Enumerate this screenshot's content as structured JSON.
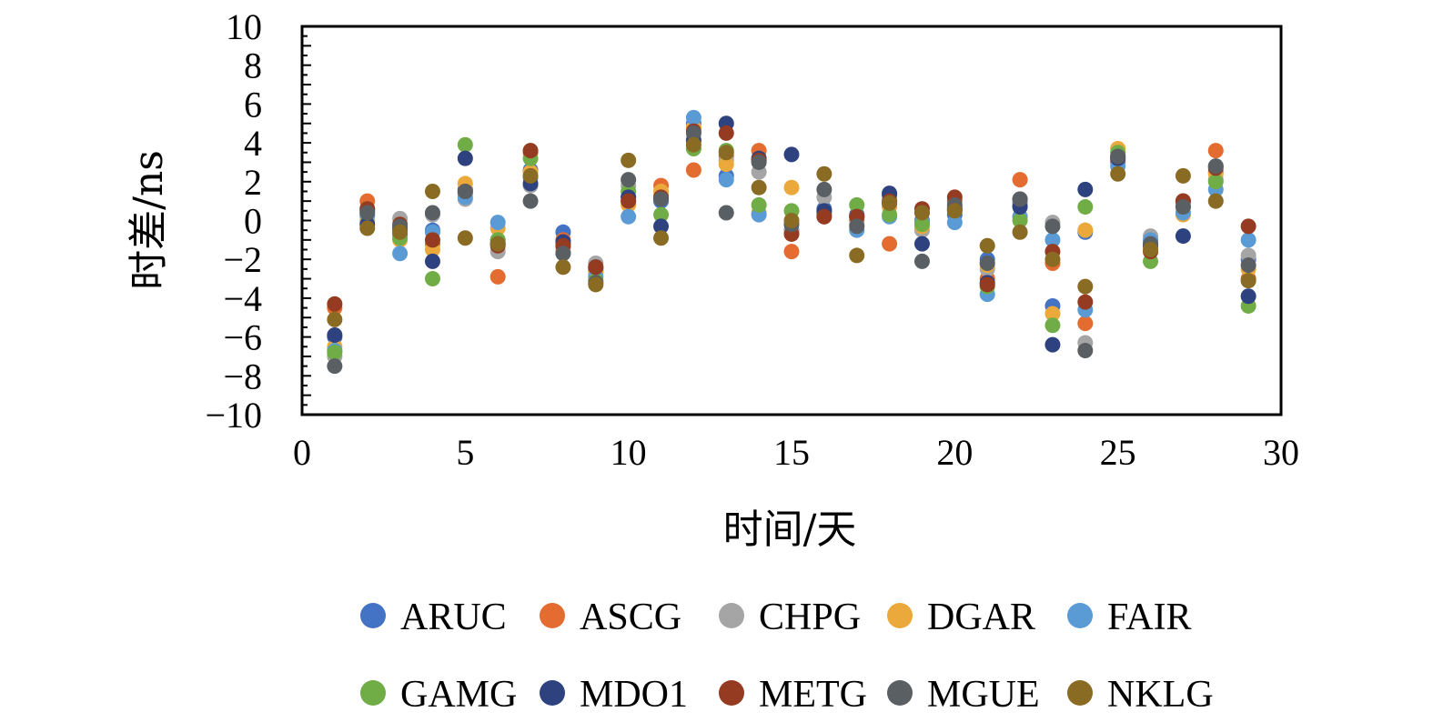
{
  "chart_data": {
    "type": "scatter",
    "title": "",
    "xlabel": "时间/天",
    "ylabel": "时差/ns",
    "xlim": [
      0,
      30
    ],
    "ylim": [
      -10,
      10
    ],
    "xticks": [
      "0",
      "5",
      "10",
      "15",
      "20",
      "25",
      "30"
    ],
    "yticks": [
      "10",
      "8",
      "6",
      "4",
      "2",
      "0",
      "−2",
      "−4",
      "−6",
      "−8",
      "−10"
    ],
    "grid": false,
    "legend_position": "bottom",
    "x": [
      1,
      2,
      3,
      4,
      5,
      6,
      7,
      8,
      9,
      10,
      11,
      12,
      13,
      14,
      15,
      16,
      17,
      18,
      19,
      20,
      21,
      22,
      23,
      24,
      25,
      26,
      27,
      28,
      29
    ],
    "series": [
      {
        "name": "ARUC",
        "color": "#4472C4",
        "values": [
          -6.0,
          0.5,
          -0.7,
          -0.5,
          1.6,
          -1.0,
          2.6,
          -0.6,
          -2.6,
          1.2,
          1.0,
          5.0,
          2.3,
          3.1,
          -0.5,
          0.6,
          0.3,
          1.3,
          0.0,
          0.3,
          -2.0,
          0.9,
          -4.4,
          -0.6,
          3.0,
          -1.1,
          1.0,
          2.5,
          -2.0
        ]
      },
      {
        "name": "ASCG",
        "color": "#E46C30",
        "values": [
          -4.5,
          1.0,
          -0.5,
          -1.2,
          1.4,
          -2.9,
          3.5,
          -1.0,
          -2.5,
          1.0,
          1.8,
          2.6,
          3.3,
          3.6,
          -1.6,
          0.2,
          0.0,
          -1.2,
          0.4,
          1.0,
          -3.0,
          2.1,
          -2.2,
          -5.3,
          3.1,
          -1.3,
          1.0,
          3.6,
          -3.0
        ]
      },
      {
        "name": "CHPG",
        "color": "#A5A5A5",
        "values": [
          -7.0,
          0.2,
          0.1,
          0.3,
          1.1,
          -1.6,
          1.8,
          -1.4,
          -2.2,
          1.8,
          1.3,
          4.2,
          3.1,
          2.5,
          -0.6,
          1.2,
          -0.2,
          0.8,
          -0.5,
          0.6,
          -2.5,
          0.8,
          -0.1,
          -6.3,
          3.2,
          -0.8,
          0.8,
          2.1,
          -1.8
        ]
      },
      {
        "name": "DGAR",
        "color": "#EAA93A",
        "values": [
          -6.5,
          0.0,
          -1.0,
          -1.5,
          1.9,
          -0.4,
          2.5,
          -1.6,
          -2.7,
          0.8,
          1.5,
          4.8,
          2.9,
          0.4,
          1.7,
          0.5,
          0.2,
          0.7,
          -0.3,
          0.7,
          -2.3,
          0.2,
          -4.8,
          -0.5,
          3.7,
          -1.1,
          0.3,
          2.4,
          -2.5
        ]
      },
      {
        "name": "FAIR",
        "color": "#5B9BD5",
        "values": [
          -6.7,
          0.3,
          -1.7,
          -0.6,
          1.2,
          -0.1,
          2.2,
          -1.7,
          -2.9,
          0.2,
          1.1,
          5.3,
          2.1,
          0.3,
          -0.2,
          0.3,
          -0.5,
          0.2,
          -0.1,
          -0.1,
          -3.8,
          0.2,
          -1.0,
          -4.6,
          2.8,
          -1.0,
          0.4,
          1.6,
          -1.0
        ]
      },
      {
        "name": "GAMG",
        "color": "#70AD47",
        "values": [
          -6.8,
          0.6,
          -0.9,
          -3.0,
          3.9,
          -1.0,
          3.2,
          -1.2,
          -3.1,
          1.5,
          0.3,
          3.7,
          3.6,
          0.8,
          0.5,
          0.4,
          0.8,
          0.3,
          -0.2,
          0.5,
          -3.4,
          0.0,
          -5.4,
          0.7,
          3.5,
          -2.1,
          0.7,
          2.0,
          -4.4
        ]
      },
      {
        "name": "MDO1",
        "color": "#2E4280",
        "values": [
          -5.9,
          -0.2,
          -0.4,
          -2.1,
          3.2,
          -1.2,
          1.9,
          -1.1,
          -2.4,
          1.2,
          -0.3,
          4.1,
          5.0,
          3.2,
          3.4,
          0.5,
          0.2,
          1.4,
          -1.2,
          0.6,
          -3.2,
          0.7,
          -6.4,
          1.6,
          3.2,
          -1.3,
          -0.8,
          2.8,
          -3.9
        ]
      },
      {
        "name": "METG",
        "color": "#943B21",
        "values": [
          -4.3,
          0.6,
          -0.2,
          -1.0,
          1.5,
          -1.3,
          3.6,
          -1.3,
          -2.4,
          1.0,
          1.2,
          4.6,
          4.5,
          3.1,
          -0.7,
          0.2,
          0.2,
          1.0,
          0.6,
          1.2,
          -3.3,
          1.1,
          -1.6,
          -4.2,
          3.3,
          -1.6,
          1.0,
          2.7,
          -0.3
        ]
      },
      {
        "name": "MGUE",
        "color": "#5A5F64",
        "values": [
          -7.5,
          0.4,
          -0.3,
          0.4,
          1.5,
          -1.2,
          1.0,
          -1.7,
          -3.2,
          2.1,
          1.1,
          4.5,
          0.4,
          3.0,
          -0.2,
          1.6,
          -0.3,
          0.9,
          -2.1,
          0.8,
          -2.2,
          1.1,
          -0.3,
          -6.7,
          3.3,
          -1.2,
          0.7,
          2.8,
          -2.3
        ]
      },
      {
        "name": "NKLG",
        "color": "#8A6B23",
        "values": [
          -5.1,
          -0.4,
          -0.6,
          1.5,
          -0.9,
          -1.2,
          2.3,
          -2.4,
          -3.3,
          3.1,
          -0.9,
          3.9,
          3.5,
          1.7,
          0.0,
          2.4,
          -1.8,
          0.9,
          0.4,
          0.5,
          -1.3,
          -0.6,
          -2.0,
          -3.4,
          2.4,
          -1.5,
          2.3,
          1.0,
          -3.1
        ]
      }
    ]
  }
}
